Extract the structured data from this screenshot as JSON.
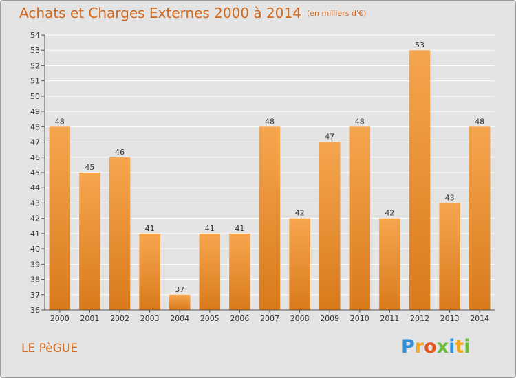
{
  "chart_data": {
    "type": "bar",
    "title": "Achats et Charges Externes 2000 à 2014",
    "subtitle": "(en milliers d'€)",
    "categories": [
      "2000",
      "2001",
      "2002",
      "2003",
      "2004",
      "2005",
      "2006",
      "2007",
      "2008",
      "2009",
      "2010",
      "2011",
      "2012",
      "2013",
      "2014"
    ],
    "values": [
      48,
      45,
      46,
      41,
      37,
      41,
      41,
      48,
      42,
      47,
      48,
      42,
      53,
      43,
      48
    ],
    "xlabel": "",
    "ylabel": "",
    "ylim": [
      36,
      54
    ],
    "yticks": [
      36,
      37,
      38,
      39,
      40,
      41,
      42,
      43,
      44,
      45,
      46,
      47,
      48,
      49,
      50,
      51,
      52,
      53,
      54
    ],
    "grid": true,
    "legend": "none",
    "colors": {
      "bar_light": "#f6a64e",
      "bar_dark": "#d97a1c",
      "grid": "#ffffff",
      "background": "#e4e4e4",
      "title": "#d2691e"
    }
  },
  "footer": {
    "town": "LE PèGUE",
    "logo": {
      "letters": [
        {
          "ch": "P",
          "color": "#2f8fd8"
        },
        {
          "ch": "r",
          "color": "#f2a81d"
        },
        {
          "ch": "o",
          "color": "#e2551f"
        },
        {
          "ch": "x",
          "color": "#6cbb3c"
        },
        {
          "ch": "i",
          "color": "#2f8fd8"
        },
        {
          "ch": "t",
          "color": "#f2a81d"
        },
        {
          "ch": "i",
          "color": "#6cbb3c"
        }
      ]
    }
  }
}
